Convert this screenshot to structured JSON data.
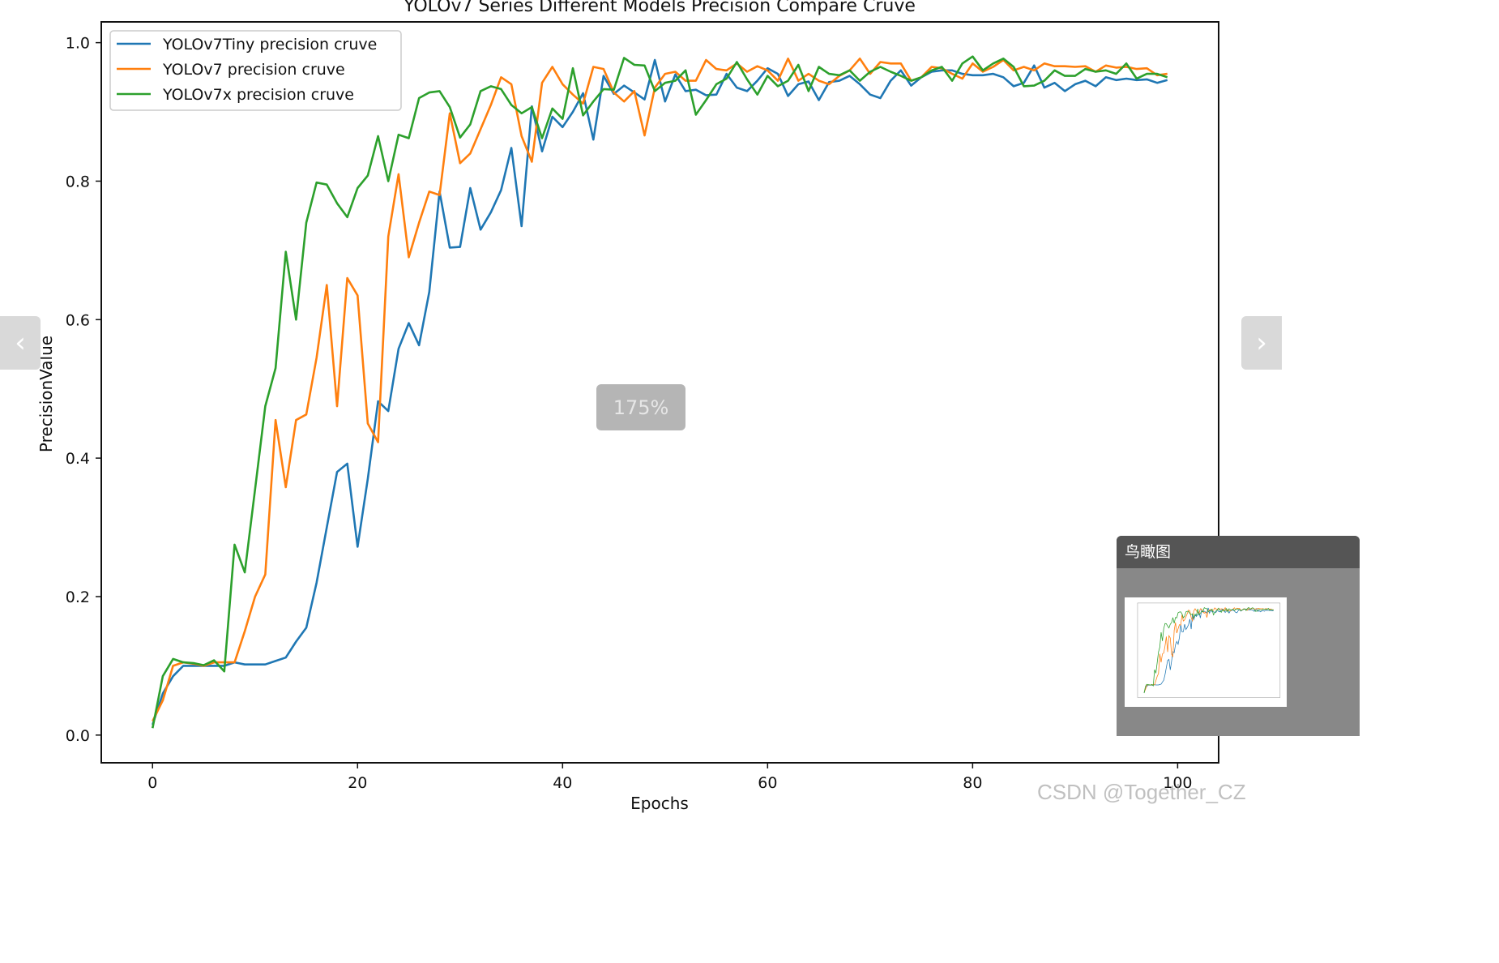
{
  "chart_data": {
    "type": "line",
    "title": "YOLOv7 Series Different Models Precision Compare Cruve",
    "xlabel": "Epochs",
    "ylabel": "PrecisionValue",
    "xlim": [
      -5,
      104
    ],
    "ylim": [
      -0.04,
      1.03
    ],
    "xticks": [
      0,
      20,
      40,
      60,
      80,
      100
    ],
    "yticks": [
      0.0,
      0.2,
      0.4,
      0.6,
      0.8,
      1.0
    ],
    "xtick_labels": [
      "0",
      "20",
      "40",
      "60",
      "80",
      "100"
    ],
    "ytick_labels": [
      "0.0",
      "0.2",
      "0.4",
      "0.6",
      "0.8",
      "1.0"
    ],
    "legend_position": "top-left",
    "grid": false,
    "series": [
      {
        "name": "YOLOv7Tiny precision cruve",
        "color": "#1f77b4",
        "x": [
          0,
          1,
          2,
          3,
          4,
          5,
          6,
          7,
          8,
          9,
          10,
          11,
          12,
          13,
          14,
          15,
          16,
          17,
          18,
          19,
          20,
          21,
          22,
          23,
          24,
          25,
          26,
          27,
          28,
          29,
          30,
          31,
          32,
          33,
          34,
          35,
          36,
          37,
          38,
          39,
          40,
          41,
          42,
          43,
          44,
          45,
          46,
          47,
          48,
          49,
          50,
          51,
          52,
          53,
          54,
          55,
          56,
          57,
          58,
          59,
          60,
          61,
          62,
          63,
          64,
          65,
          66,
          67,
          68,
          69,
          70,
          71,
          72,
          73,
          74,
          75,
          76,
          77,
          78,
          79,
          80,
          81,
          82,
          83,
          84,
          85,
          86,
          87,
          88,
          89,
          90,
          91,
          92,
          93,
          94,
          95,
          96,
          97,
          98,
          99
        ],
        "values": [
          0.015,
          0.06,
          0.085,
          0.1,
          0.1,
          0.1,
          0.1,
          0.1,
          0.105,
          0.102,
          0.102,
          0.102,
          0.107,
          0.112,
          0.135,
          0.155,
          0.22,
          0.3,
          0.38,
          0.392,
          0.272,
          0.37,
          0.482,
          0.468,
          0.558,
          0.595,
          0.563,
          0.64,
          0.785,
          0.704,
          0.705,
          0.79,
          0.73,
          0.755,
          0.787,
          0.848,
          0.735,
          0.908,
          0.843,
          0.893,
          0.878,
          0.9,
          0.927,
          0.86,
          0.952,
          0.926,
          0.938,
          0.928,
          0.918,
          0.975,
          0.915,
          0.954,
          0.93,
          0.932,
          0.924,
          0.925,
          0.955,
          0.935,
          0.93,
          0.945,
          0.963,
          0.955,
          0.923,
          0.94,
          0.944,
          0.917,
          0.943,
          0.945,
          0.952,
          0.94,
          0.925,
          0.92,
          0.945,
          0.96,
          0.938,
          0.95,
          0.958,
          0.96,
          0.96,
          0.955,
          0.953,
          0.953,
          0.955,
          0.95,
          0.937,
          0.942,
          0.967,
          0.935,
          0.942,
          0.93,
          0.94,
          0.945,
          0.937,
          0.95,
          0.946,
          0.948,
          0.946,
          0.947,
          0.942,
          0.946
        ]
      },
      {
        "name": "YOLOv7 precision cruve",
        "color": "#ff7f0e",
        "x": [
          0,
          1,
          2,
          3,
          4,
          5,
          6,
          7,
          8,
          9,
          10,
          11,
          12,
          13,
          14,
          15,
          16,
          17,
          18,
          19,
          20,
          21,
          22,
          23,
          24,
          25,
          26,
          27,
          28,
          29,
          30,
          31,
          32,
          33,
          34,
          35,
          36,
          37,
          38,
          39,
          40,
          41,
          42,
          43,
          44,
          45,
          46,
          47,
          48,
          49,
          50,
          51,
          52,
          53,
          54,
          55,
          56,
          57,
          58,
          59,
          60,
          61,
          62,
          63,
          64,
          65,
          66,
          67,
          68,
          69,
          70,
          71,
          72,
          73,
          74,
          75,
          76,
          77,
          78,
          79,
          80,
          81,
          82,
          83,
          84,
          85,
          86,
          87,
          88,
          89,
          90,
          91,
          92,
          93,
          94,
          95,
          96,
          97,
          98,
          99
        ],
        "values": [
          0.02,
          0.05,
          0.1,
          0.105,
          0.103,
          0.1,
          0.105,
          0.105,
          0.105,
          0.15,
          0.2,
          0.232,
          0.455,
          0.358,
          0.455,
          0.463,
          0.545,
          0.65,
          0.475,
          0.66,
          0.635,
          0.45,
          0.423,
          0.72,
          0.81,
          0.69,
          0.74,
          0.785,
          0.78,
          0.898,
          0.826,
          0.84,
          0.875,
          0.91,
          0.95,
          0.94,
          0.865,
          0.828,
          0.942,
          0.965,
          0.94,
          0.925,
          0.912,
          0.965,
          0.962,
          0.928,
          0.915,
          0.93,
          0.866,
          0.935,
          0.955,
          0.958,
          0.945,
          0.945,
          0.975,
          0.962,
          0.96,
          0.97,
          0.958,
          0.966,
          0.96,
          0.945,
          0.977,
          0.945,
          0.955,
          0.945,
          0.94,
          0.952,
          0.96,
          0.977,
          0.955,
          0.972,
          0.97,
          0.97,
          0.945,
          0.95,
          0.965,
          0.963,
          0.955,
          0.948,
          0.97,
          0.958,
          0.965,
          0.975,
          0.96,
          0.965,
          0.96,
          0.97,
          0.966,
          0.966,
          0.965,
          0.966,
          0.958,
          0.967,
          0.964,
          0.965,
          0.962,
          0.963,
          0.953,
          0.955
        ]
      },
      {
        "name": "YOLOv7x precision cruve",
        "color": "#2ca02c",
        "x": [
          0,
          1,
          2,
          3,
          4,
          5,
          6,
          7,
          8,
          9,
          10,
          11,
          12,
          13,
          14,
          15,
          16,
          17,
          18,
          19,
          20,
          21,
          22,
          23,
          24,
          25,
          26,
          27,
          28,
          29,
          30,
          31,
          32,
          33,
          34,
          35,
          36,
          37,
          38,
          39,
          40,
          41,
          42,
          43,
          44,
          45,
          46,
          47,
          48,
          49,
          50,
          51,
          52,
          53,
          54,
          55,
          56,
          57,
          58,
          59,
          60,
          61,
          62,
          63,
          64,
          65,
          66,
          67,
          68,
          69,
          70,
          71,
          72,
          73,
          74,
          75,
          76,
          77,
          78,
          79,
          80,
          81,
          82,
          83,
          84,
          85,
          86,
          87,
          88,
          89,
          90,
          91,
          92,
          93,
          94,
          95,
          96,
          97,
          98,
          99
        ],
        "values": [
          0.01,
          0.085,
          0.11,
          0.105,
          0.104,
          0.101,
          0.108,
          0.092,
          0.275,
          0.235,
          0.355,
          0.475,
          0.53,
          0.698,
          0.6,
          0.74,
          0.798,
          0.795,
          0.768,
          0.748,
          0.79,
          0.808,
          0.865,
          0.8,
          0.867,
          0.862,
          0.92,
          0.928,
          0.93,
          0.907,
          0.863,
          0.882,
          0.93,
          0.937,
          0.933,
          0.91,
          0.898,
          0.907,
          0.862,
          0.905,
          0.89,
          0.963,
          0.895,
          0.915,
          0.933,
          0.932,
          0.978,
          0.968,
          0.967,
          0.93,
          0.942,
          0.945,
          0.96,
          0.896,
          0.917,
          0.94,
          0.948,
          0.972,
          0.947,
          0.925,
          0.952,
          0.937,
          0.945,
          0.968,
          0.93,
          0.965,
          0.955,
          0.953,
          0.96,
          0.945,
          0.958,
          0.965,
          0.958,
          0.952,
          0.945,
          0.95,
          0.96,
          0.965,
          0.945,
          0.97,
          0.98,
          0.96,
          0.97,
          0.977,
          0.965,
          0.937,
          0.938,
          0.945,
          0.96,
          0.952,
          0.952,
          0.962,
          0.958,
          0.96,
          0.955,
          0.97,
          0.948,
          0.955,
          0.955,
          0.95
        ]
      }
    ]
  },
  "viewer": {
    "zoom_label": "175%",
    "prev_icon": "chevron-left-icon",
    "next_icon": "chevron-right-icon",
    "birdseye_title": "鸟瞰图"
  },
  "watermark": "CSDN @Together_CZ"
}
